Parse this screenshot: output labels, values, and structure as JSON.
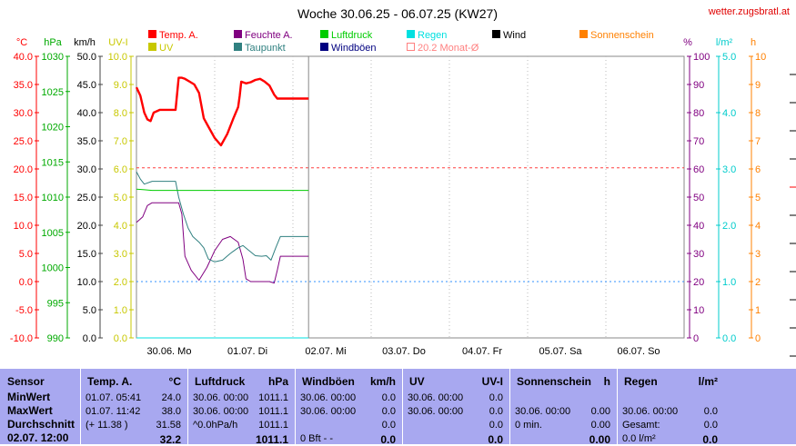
{
  "title": "Woche 30.06.25 - 06.07.25 (KW27)",
  "site": "wetter.zugsbratl.at",
  "colors": {
    "temp": "#ff0000",
    "feuchte": "#800080",
    "luftdruck": "#00cc00",
    "regen": "#00e0e0",
    "wind": "#000000",
    "sonne": "#ff8000",
    "uv": "#c8c800",
    "taupunkt": "#308080",
    "windboeen": "#000080",
    "monat": "#ff8080"
  },
  "legend": [
    {
      "label": "Temp. A.",
      "color": "#ff0000",
      "type": "box"
    },
    {
      "label": "Feuchte A.",
      "color": "#800080",
      "type": "box"
    },
    {
      "label": "Luftdruck",
      "color": "#00cc00",
      "type": "box"
    },
    {
      "label": "Regen",
      "color": "#00e0e0",
      "type": "box"
    },
    {
      "label": "Wind",
      "color": "#000000",
      "type": "box"
    },
    {
      "label": "Sonnenschein",
      "color": "#ff8000",
      "type": "box"
    },
    {
      "label": "UV",
      "color": "#c8c800",
      "type": "box"
    },
    {
      "label": "Taupunkt",
      "color": "#308080",
      "type": "box"
    },
    {
      "label": "Windböen",
      "color": "#000080",
      "type": "box"
    },
    {
      "label": "20.2 Monat-Ø",
      "color": "#ff8080",
      "type": "outline"
    }
  ],
  "chart_data": {
    "type": "line",
    "axes_left": [
      {
        "unit": "°C",
        "color": "#ff0000",
        "ticks": [
          "40.0",
          "35.0",
          "30.0",
          "25.0",
          "20.0",
          "15.0",
          "10.0",
          "5.0",
          "0.0",
          "-5.0",
          "-10.0"
        ]
      },
      {
        "unit": "hPa",
        "color": "#00aa00",
        "ticks": [
          "1030",
          "1025",
          "1020",
          "1015",
          "1010",
          "1005",
          "1000",
          "995",
          "990"
        ]
      },
      {
        "unit": "km/h",
        "color": "#000000",
        "ticks": [
          "50.0",
          "45.0",
          "40.0",
          "35.0",
          "30.0",
          "25.0",
          "20.0",
          "15.0",
          "10.0",
          "5.0",
          "0.0"
        ]
      },
      {
        "unit": "UV-I",
        "color": "#c8c800",
        "ticks": [
          "10.0",
          "9.0",
          "8.0",
          "7.0",
          "6.0",
          "5.0",
          "4.0",
          "3.0",
          "2.0",
          "1.0",
          "0.0"
        ]
      }
    ],
    "axes_right": [
      {
        "unit": "%",
        "color": "#800080",
        "ticks": [
          "100",
          "90",
          "80",
          "70",
          "60",
          "50",
          "40",
          "30",
          "20",
          "10",
          "0"
        ]
      },
      {
        "unit": "l/m²",
        "color": "#00cccc",
        "ticks": [
          "5.0",
          "4.0",
          "3.0",
          "2.0",
          "1.0",
          "0.0"
        ]
      },
      {
        "unit": "h",
        "color": "#ff8000",
        "ticks": [
          "10",
          "9",
          "8",
          "7",
          "6",
          "5",
          "4",
          "3",
          "2",
          "1",
          "0"
        ]
      }
    ],
    "x_labels": [
      "30.06.  Mo",
      "01.07.  Di",
      "02.07.  Mi",
      "03.07.  Do",
      "04.07.  Fr",
      "05.07.  Sa",
      "06.07.  So"
    ],
    "x_days": 7,
    "ylim_temp": [
      -10,
      40
    ],
    "ylim_pct": [
      0,
      100
    ],
    "ylim_hpa": [
      990,
      1030
    ],
    "monat_avg": 20.2,
    "series": [
      {
        "name": "Temp. A.",
        "axis": "temp",
        "color": "#ff0000",
        "width": 2.4,
        "x": [
          0,
          0.05,
          0.1,
          0.14,
          0.18,
          0.22,
          0.3,
          0.4,
          0.5,
          0.54,
          0.58,
          0.62,
          0.68,
          0.74,
          0.8,
          0.86,
          0.92,
          1.0,
          1.08,
          1.16,
          1.24,
          1.3,
          1.32,
          1.34,
          1.4,
          1.46,
          1.52,
          1.58,
          1.64,
          1.7,
          1.76,
          1.8,
          1.84,
          2.0,
          2.2
        ],
        "y": [
          34.5,
          33,
          30,
          28.8,
          28.5,
          30,
          30.5,
          30.5,
          30.5,
          36.2,
          36.2,
          36,
          35.5,
          35,
          33.5,
          29,
          27.5,
          25.5,
          24.2,
          26.2,
          29,
          31,
          33,
          35.5,
          35.2,
          35.4,
          35.8,
          36,
          35.5,
          34.8,
          33.2,
          32.5,
          32.5,
          32.5,
          32.5
        ]
      },
      {
        "name": "Feuchte A.",
        "axis": "pct",
        "color": "#800080",
        "width": 1,
        "x": [
          0,
          0.08,
          0.14,
          0.2,
          0.26,
          0.34,
          0.44,
          0.54,
          0.58,
          0.62,
          0.7,
          0.8,
          0.9,
          1.0,
          1.1,
          1.2,
          1.3,
          1.36,
          1.4,
          1.46,
          1.54,
          1.62,
          1.7,
          1.76,
          1.8,
          1.84,
          2.0,
          2.2
        ],
        "y": [
          41,
          43,
          47,
          48,
          48,
          48,
          48,
          48,
          44,
          29,
          24,
          20.5,
          25,
          31,
          35,
          36,
          34,
          28,
          21,
          20,
          20,
          20,
          20,
          19.5,
          24,
          29,
          29,
          29
        ]
      },
      {
        "name": "Taupunkt",
        "axis": "temp",
        "color": "#308080",
        "width": 1,
        "x": [
          0,
          0.05,
          0.1,
          0.2,
          0.3,
          0.4,
          0.5,
          0.54,
          0.6,
          0.66,
          0.72,
          0.8,
          0.86,
          0.92,
          1.0,
          1.1,
          1.2,
          1.3,
          1.36,
          1.44,
          1.52,
          1.6,
          1.66,
          1.72,
          1.78,
          1.84,
          2.0,
          2.2
        ],
        "y": [
          19.5,
          18.2,
          17.3,
          17.8,
          17.8,
          17.8,
          17.8,
          15,
          12,
          9.5,
          8,
          7,
          6,
          4,
          3.5,
          3.8,
          5,
          6,
          6.4,
          5.5,
          4.6,
          4.5,
          4.6,
          3.8,
          6,
          8,
          8,
          8
        ]
      },
      {
        "name": "Luftdruck",
        "axis": "temp",
        "color": "#00cc00",
        "width": 1,
        "x": [
          0,
          0.1,
          0.2,
          0.4,
          0.8,
          1.2,
          1.6,
          2.0,
          2.2
        ],
        "y": [
          16.4,
          16.3,
          16.2,
          16.2,
          16.2,
          16.2,
          16.2,
          16.2,
          16.2
        ]
      },
      {
        "name": "Regen",
        "axis": "temp",
        "color": "#00e0e0",
        "width": 1,
        "x": [
          0,
          2.2
        ],
        "y": [
          -10,
          -10
        ]
      }
    ]
  },
  "table": {
    "columns": [
      {
        "name": "Sensor",
        "unit": ""
      },
      {
        "name": "Temp. A.",
        "unit": "°C"
      },
      {
        "name": "Luftdruck",
        "unit": "hPa"
      },
      {
        "name": "Windböen",
        "unit": "km/h"
      },
      {
        "name": "UV",
        "unit": "UV-I"
      },
      {
        "name": "Sonnenschein",
        "unit": "h"
      },
      {
        "name": "Regen",
        "unit": "l/m²"
      }
    ],
    "rows": [
      {
        "label": "MinWert",
        "cells": [
          [
            "01.07.  05:41",
            "24.0"
          ],
          [
            "30.06.  00:00",
            "1011.1"
          ],
          [
            "30.06.  00:00",
            "0.0"
          ],
          [
            "30.06.  00:00",
            "0.0"
          ],
          [
            "",
            ""
          ],
          [
            "",
            ""
          ]
        ]
      },
      {
        "label": "MaxWert",
        "cells": [
          [
            "01.07.  11:42",
            "38.0"
          ],
          [
            "30.06.  00:00",
            "1011.1"
          ],
          [
            "30.06.  00:00",
            "0.0"
          ],
          [
            "30.06.  00:00",
            "0.0"
          ],
          [
            "30.06.  00:00",
            "0.00"
          ],
          [
            "30.06.  00:00",
            "0.0"
          ]
        ]
      },
      {
        "label": "Durchschnitt",
        "cells": [
          [
            "(+ 11.38 )",
            "31.58"
          ],
          [
            "^0.0hPa/h",
            "1011.1"
          ],
          [
            "",
            "0.0"
          ],
          [
            "",
            "0.0"
          ],
          [
            "0 min.",
            "0.00"
          ],
          [
            "Gesamt:",
            "0.0"
          ]
        ]
      },
      {
        "label": "02.07.  12:00",
        "cells": [
          [
            "",
            "32.2"
          ],
          [
            "",
            "1011.1"
          ],
          [
            "0 Bft - -",
            "0.0"
          ],
          [
            "",
            "0.0"
          ],
          [
            "",
            "0.00"
          ],
          [
            "0.0 l/m²",
            "0.0"
          ]
        ]
      }
    ]
  }
}
